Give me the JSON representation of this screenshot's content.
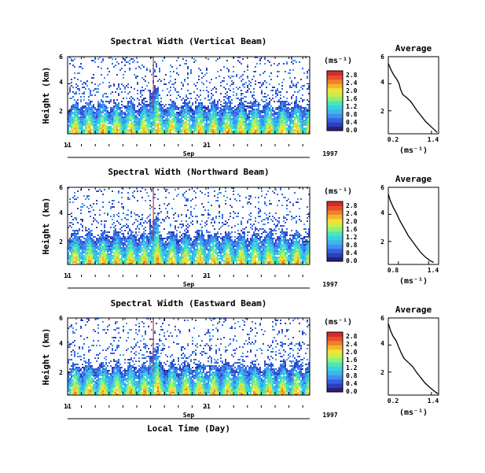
{
  "colors": {
    "colorbar": [
      "#2b1f7a",
      "#2d3fb8",
      "#3561e0",
      "#3f8ff0",
      "#3fb4ef",
      "#35d4df",
      "#4fe6b5",
      "#8df07d",
      "#c8f04a",
      "#f3e13a",
      "#f5b52c",
      "#f0802a",
      "#e8502c",
      "#d62a2a"
    ],
    "trace": "#000000",
    "spike": "#e03020"
  },
  "chart_data": [
    {
      "type": "heatmap",
      "panel": "vertical",
      "title": "Spectral Width (Vertical Beam)",
      "ylabel": "Height (km)",
      "yticks": [
        "2",
        "4",
        "6"
      ],
      "ylim": [
        0.3,
        6
      ],
      "xticks": [
        "11",
        "21"
      ],
      "xlim": [
        11,
        28.5
      ],
      "xlabel": "Sep",
      "year": "1997",
      "colorbar": {
        "unit": "(ms⁻¹)",
        "ticks": [
          "0.0",
          "0.4",
          "0.8",
          "1.2",
          "1.6",
          "2.0",
          "2.4",
          "2.8"
        ],
        "range": [
          0,
          3
        ]
      },
      "average": {
        "title": "Average",
        "xlabel": "(ms⁻¹)",
        "xticks": [
          "0.2",
          "1.4"
        ],
        "yticks": [
          "2",
          "4",
          "6"
        ],
        "xlim": [
          0.2,
          1.6
        ],
        "ylim": [
          0.3,
          6
        ],
        "profile": [
          [
            0.2,
            5.5
          ],
          [
            0.28,
            5.0
          ],
          [
            0.34,
            4.7
          ],
          [
            0.44,
            4.3
          ],
          [
            0.5,
            4.0
          ],
          [
            0.54,
            3.6
          ],
          [
            0.6,
            3.2
          ],
          [
            0.7,
            3.0
          ],
          [
            0.82,
            2.7
          ],
          [
            0.9,
            2.4
          ],
          [
            1.0,
            2.0
          ],
          [
            1.12,
            1.6
          ],
          [
            1.24,
            1.2
          ],
          [
            1.36,
            0.9
          ],
          [
            1.48,
            0.6
          ],
          [
            1.56,
            0.4
          ]
        ]
      }
    },
    {
      "type": "heatmap",
      "panel": "northward",
      "title": "Spectral Width (Northward Beam)",
      "ylabel": "Height (km)",
      "yticks": [
        "2",
        "4",
        "6"
      ],
      "ylim": [
        0.3,
        6
      ],
      "xticks": [
        "11",
        "21"
      ],
      "xlim": [
        11,
        28.5
      ],
      "xlabel": "Sep",
      "year": "1997",
      "colorbar": {
        "unit": "(ms⁻¹)",
        "ticks": [
          "0.0",
          "0.4",
          "0.8",
          "1.2",
          "1.6",
          "2.0",
          "2.4",
          "2.8"
        ],
        "range": [
          0,
          3
        ]
      },
      "average": {
        "title": "Average",
        "xlabel": "(ms⁻¹)",
        "xticks": [
          "0.8",
          "1.4"
        ],
        "yticks": [
          "2",
          "4",
          "6"
        ],
        "xlim": [
          0.6,
          1.6
        ],
        "ylim": [
          0.3,
          6
        ],
        "profile": [
          [
            0.6,
            5.5
          ],
          [
            0.64,
            5.0
          ],
          [
            0.7,
            4.5
          ],
          [
            0.76,
            4.1
          ],
          [
            0.82,
            3.6
          ],
          [
            0.88,
            3.2
          ],
          [
            0.94,
            2.8
          ],
          [
            1.0,
            2.4
          ],
          [
            1.08,
            2.0
          ],
          [
            1.16,
            1.6
          ],
          [
            1.24,
            1.2
          ],
          [
            1.32,
            0.9
          ],
          [
            1.42,
            0.6
          ],
          [
            1.5,
            0.45
          ]
        ]
      }
    },
    {
      "type": "heatmap",
      "panel": "eastward",
      "title": "Spectral Width (Eastward Beam)",
      "ylabel": "Height (km)",
      "yticks": [
        "2",
        "4",
        "6"
      ],
      "ylim": [
        0.3,
        6
      ],
      "xticks": [
        "11",
        "21"
      ],
      "xlim": [
        11,
        28.5
      ],
      "xlabel": "Sep",
      "year": "1997",
      "colorbar": {
        "unit": "(ms⁻¹)",
        "ticks": [
          "0.0",
          "0.4",
          "0.8",
          "1.2",
          "1.6",
          "2.0",
          "2.4",
          "2.8"
        ],
        "range": [
          0,
          3
        ]
      },
      "average": {
        "title": "Average",
        "xlabel": "(ms⁻¹)",
        "xticks": [
          "0.2",
          "1.4"
        ],
        "yticks": [
          "2",
          "4",
          "6"
        ],
        "xlim": [
          0.2,
          1.6
        ],
        "ylim": [
          0.3,
          6
        ],
        "profile": [
          [
            0.2,
            5.6
          ],
          [
            0.26,
            5.1
          ],
          [
            0.32,
            4.7
          ],
          [
            0.42,
            4.3
          ],
          [
            0.48,
            3.9
          ],
          [
            0.56,
            3.4
          ],
          [
            0.64,
            3.0
          ],
          [
            0.76,
            2.7
          ],
          [
            0.88,
            2.4
          ],
          [
            0.98,
            2.0
          ],
          [
            1.1,
            1.6
          ],
          [
            1.22,
            1.2
          ],
          [
            1.36,
            0.85
          ],
          [
            1.5,
            0.55
          ],
          [
            1.58,
            0.4
          ]
        ]
      }
    }
  ],
  "footer": {
    "xaxis_title": "Local Time (Day)"
  }
}
